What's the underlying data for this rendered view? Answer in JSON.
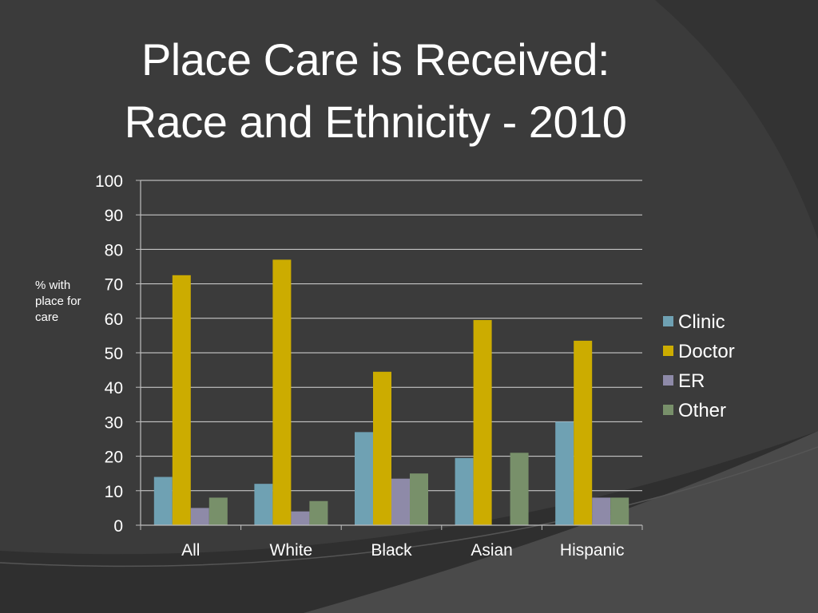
{
  "title_lines": [
    "Place Care is Received:",
    "Race and Ethnicity - 2010"
  ],
  "chart_data": {
    "type": "bar",
    "title": "Place Care is Received: Race and Ethnicity - 2010",
    "ylabel": "% with place for care",
    "xlabel": "",
    "categories": [
      "All",
      "White",
      "Black",
      "Asian",
      "Hispanic"
    ],
    "ylim": [
      0,
      100
    ],
    "yticks": [
      0,
      10,
      20,
      30,
      40,
      50,
      60,
      70,
      80,
      90,
      100
    ],
    "grid": true,
    "legend_position": "right",
    "series": [
      {
        "name": "Clinic",
        "color": "#6fa1b3",
        "values": [
          14,
          12,
          27,
          19.5,
          30
        ]
      },
      {
        "name": "Doctor",
        "color": "#ccac00",
        "values": [
          72.5,
          77,
          44.5,
          59.5,
          53.5
        ]
      },
      {
        "name": "ER",
        "color": "#8e8aa8",
        "values": [
          5,
          4,
          13.5,
          0,
          8
        ]
      },
      {
        "name": "Other",
        "color": "#78906a",
        "values": [
          8,
          7,
          15,
          21,
          8
        ]
      }
    ]
  }
}
